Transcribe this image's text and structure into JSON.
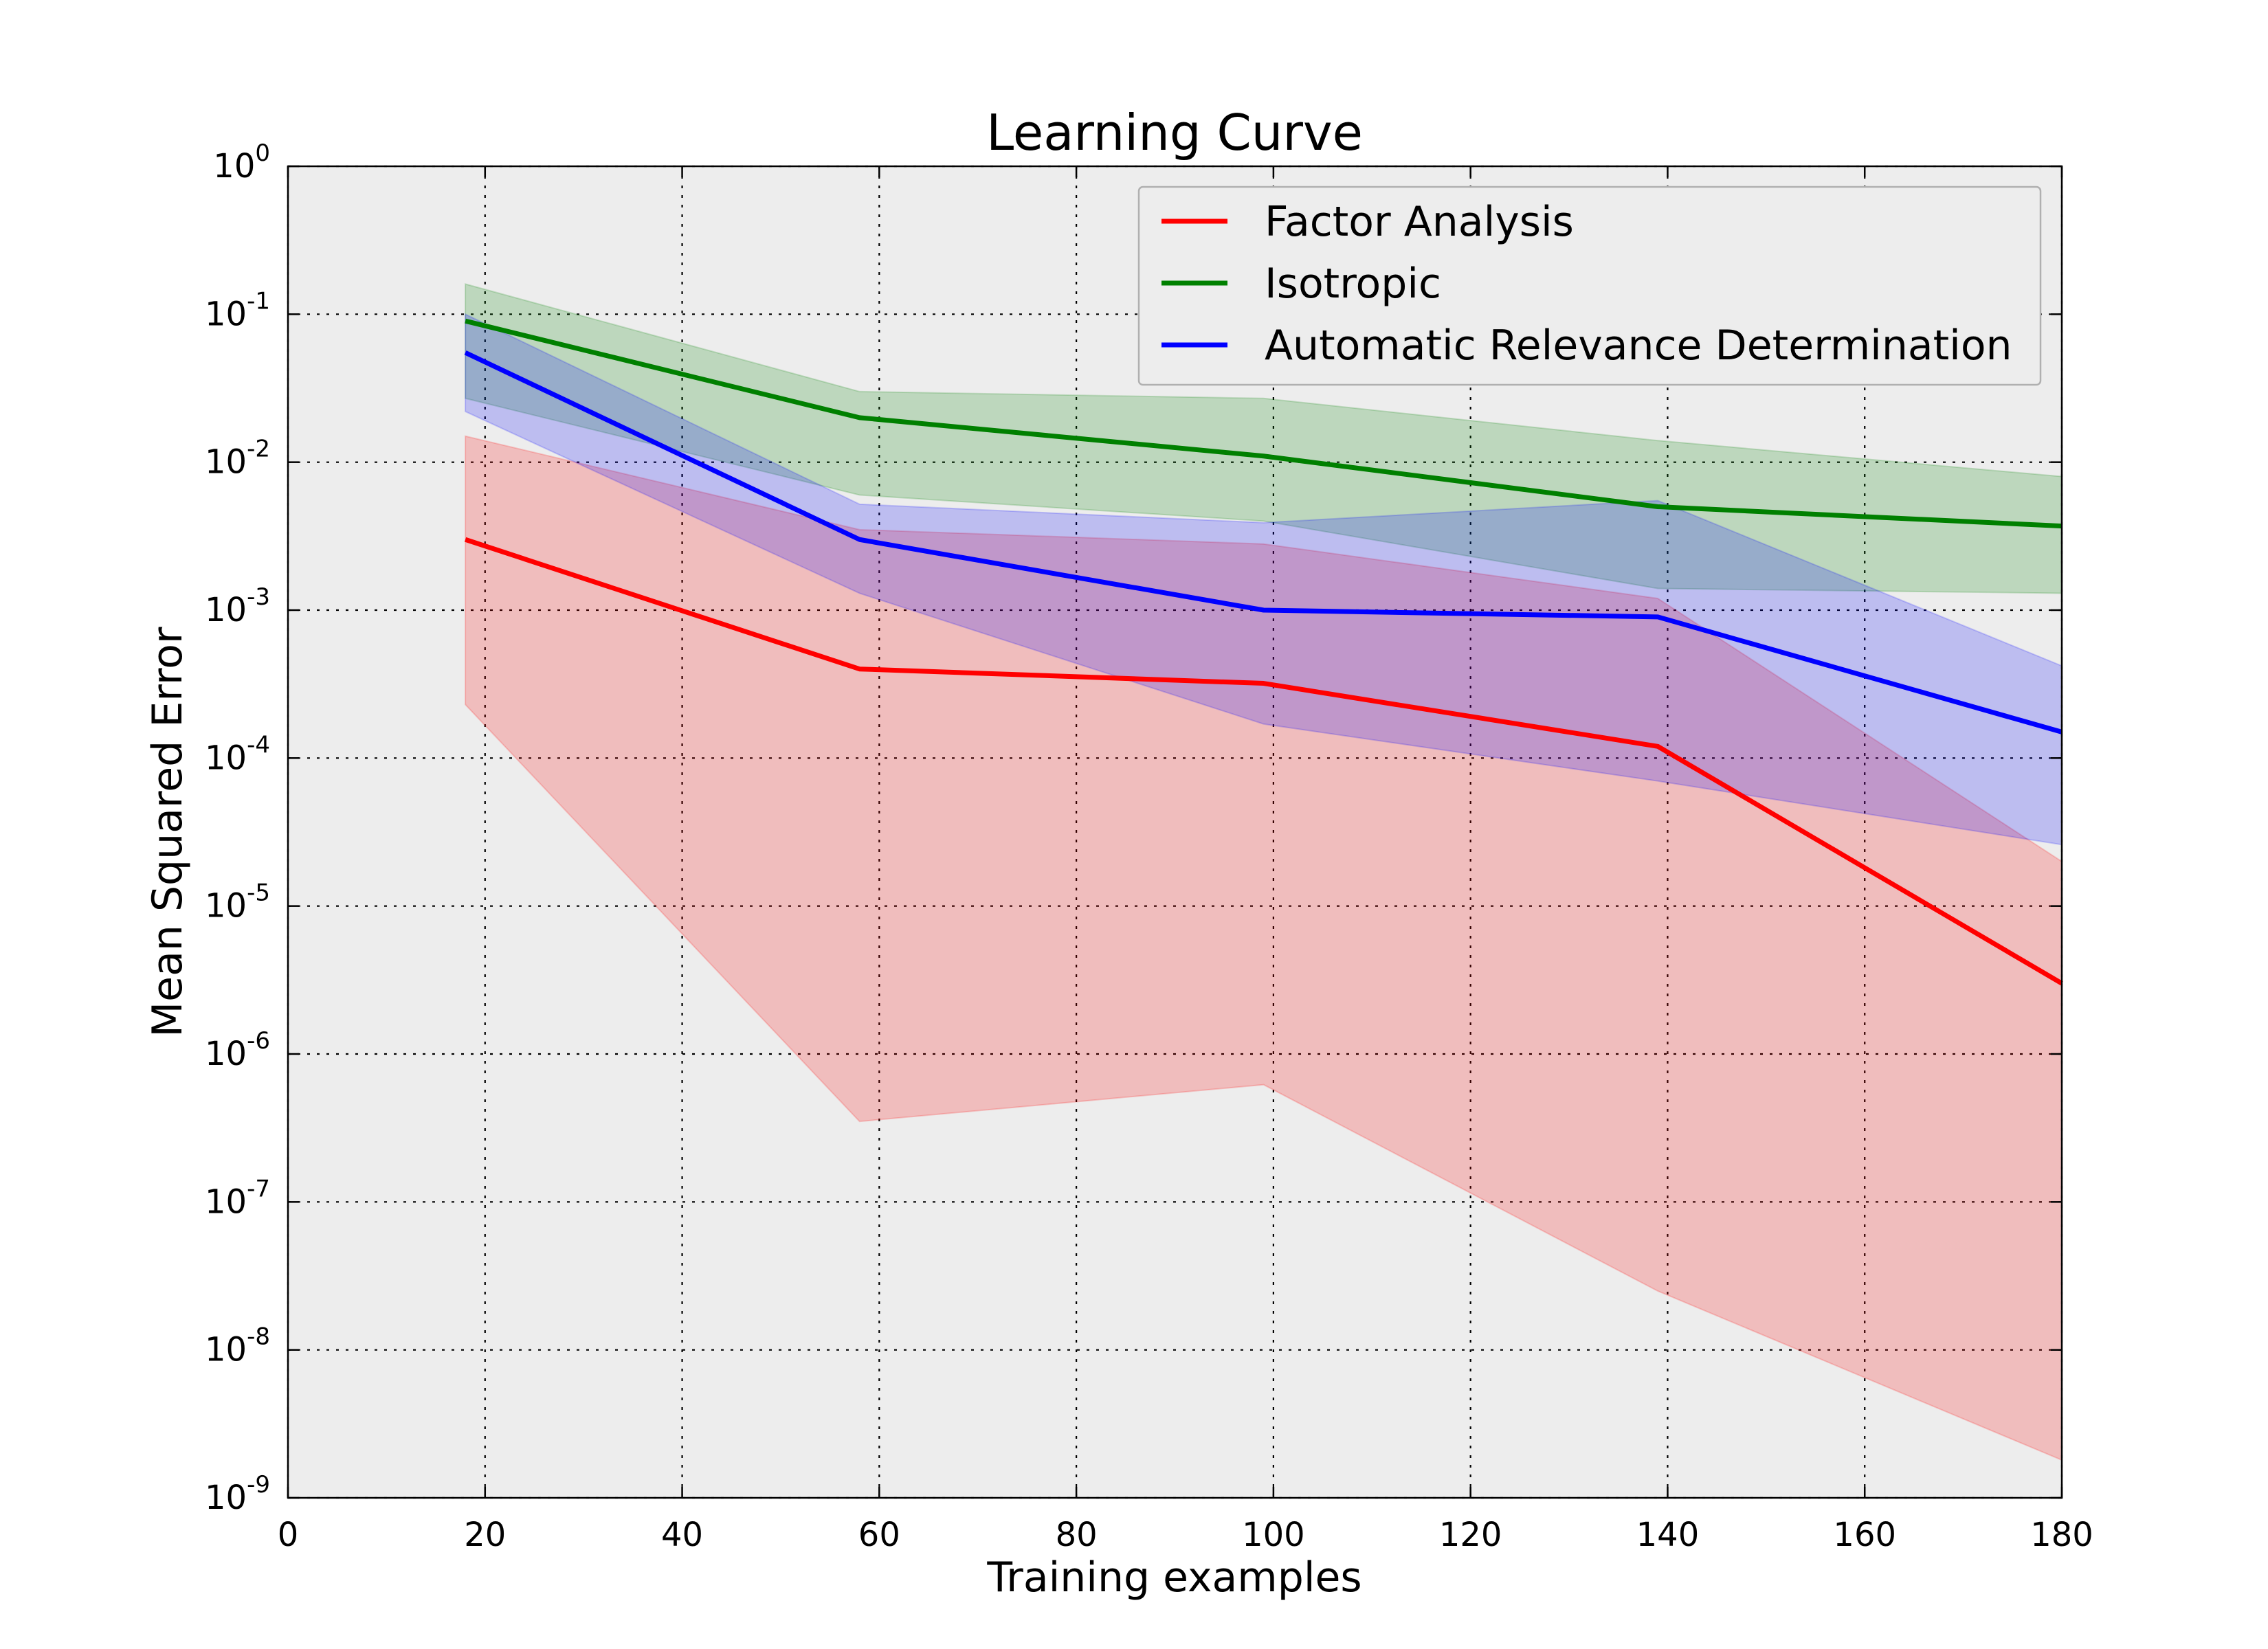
{
  "chart_data": {
    "type": "line",
    "title": "Learning Curve",
    "xlabel": "Training examples",
    "ylabel": "Mean Squared Error",
    "x_scale": "linear",
    "y_scale": "log",
    "xlim": [
      0,
      180
    ],
    "ylim": [
      1e-09,
      1
    ],
    "x_ticks": [
      0,
      20,
      40,
      60,
      80,
      100,
      120,
      140,
      160,
      180
    ],
    "y_ticks": [
      {
        "base": "10",
        "exp": "-9",
        "value": 1e-09
      },
      {
        "base": "10",
        "exp": "-8",
        "value": 1e-08
      },
      {
        "base": "10",
        "exp": "-7",
        "value": 1e-07
      },
      {
        "base": "10",
        "exp": "-6",
        "value": 1e-06
      },
      {
        "base": "10",
        "exp": "-5",
        "value": 1e-05
      },
      {
        "base": "10",
        "exp": "-4",
        "value": 0.0001
      },
      {
        "base": "10",
        "exp": "-3",
        "value": 0.001
      },
      {
        "base": "10",
        "exp": "-2",
        "value": 0.01
      },
      {
        "base": "10",
        "exp": "-1",
        "value": 0.1
      },
      {
        "base": "10",
        "exp": "0",
        "value": 1
      }
    ],
    "grid": true,
    "background_color": "#ededed",
    "legend_position": "top-right",
    "x": [
      18,
      58,
      99,
      139,
      180
    ],
    "series": [
      {
        "name": "Factor Analysis",
        "color": "#ff0000",
        "values": [
          0.003,
          0.0004,
          0.00032,
          0.00012,
          3e-06
        ],
        "band_lower": [
          0.00023,
          3.5e-07,
          6.2e-07,
          2.5e-08,
          1.8e-09
        ],
        "band_upper": [
          0.015,
          0.0035,
          0.0028,
          0.0012,
          2e-05
        ]
      },
      {
        "name": "Isotropic",
        "color": "#008000",
        "values": [
          0.09,
          0.02,
          0.011,
          0.005,
          0.0037
        ],
        "band_lower": [
          0.027,
          0.006,
          0.004,
          0.0014,
          0.0013
        ],
        "band_upper": [
          0.16,
          0.03,
          0.027,
          0.014,
          0.008
        ]
      },
      {
        "name": "Automatic Relevance Determination",
        "color": "#0000ff",
        "values": [
          0.055,
          0.003,
          0.001,
          0.0009,
          0.00015
        ],
        "band_lower": [
          0.022,
          0.0013,
          0.00017,
          7e-05,
          2.6e-05
        ],
        "band_upper": [
          0.1,
          0.0052,
          0.0039,
          0.0055,
          0.00042
        ]
      }
    ]
  }
}
